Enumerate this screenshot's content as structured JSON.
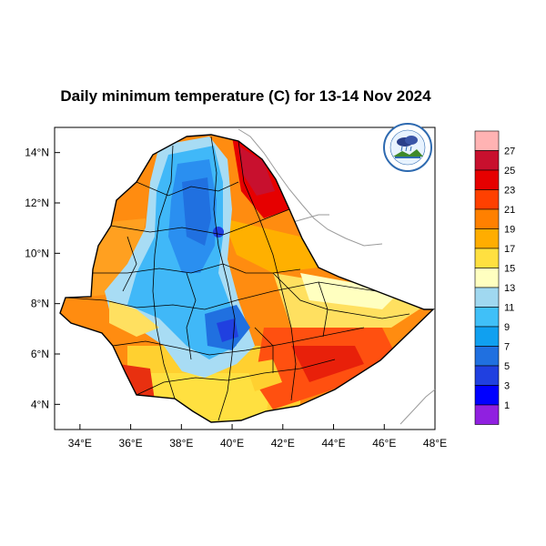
{
  "title": "Daily minimum temperature (C) for 13-14 Nov 2024",
  "logo": {
    "icon": "meteorology-institute-logo-icon",
    "arc_text": "የኢትዮጵያ ሚቲዎሮሎጂ ኢንስቲትዩት",
    "caption": "Ethiopian Meteorology Institute"
  },
  "map": {
    "lon_range": [
      33,
      48
    ],
    "lat_range": [
      3,
      15
    ],
    "x_ticks": [
      "34°E",
      "36°E",
      "38°E",
      "40°E",
      "42°E",
      "44°E",
      "46°E",
      "48°E"
    ],
    "y_ticks": [
      "14°N",
      "12°N",
      "10°N",
      "8°N",
      "6°N",
      "4°N"
    ]
  },
  "colorbar": {
    "labels": [
      "27",
      "25",
      "23",
      "21",
      "19",
      "17",
      "15",
      "13",
      "11",
      "9",
      "7",
      "5",
      "3",
      "1"
    ],
    "colors": [
      "#ffb3b3",
      "#c8102e",
      "#e60000",
      "#ff4000",
      "#ff8000",
      "#ffad00",
      "#ffe040",
      "#ffffc0",
      "#a0d8f0",
      "#40c0f8",
      "#10a0f0",
      "#2070e0",
      "#2040e0",
      "#0000ff",
      "#9020e0"
    ]
  },
  "chart_data": {
    "type": "heatmap",
    "title": "Daily minimum temperature (C) for 13-14 Nov 2024",
    "x_ticks": [
      "34°E",
      "36°E",
      "38°E",
      "40°E",
      "42°E",
      "44°E",
      "46°E",
      "48°E"
    ],
    "y_ticks": [
      "14°N",
      "12°N",
      "10°N",
      "8°N",
      "6°N",
      "4°N"
    ],
    "xlim": [
      33,
      48
    ],
    "ylim": [
      3,
      15
    ],
    "colorbar_levels": [
      1,
      3,
      5,
      7,
      9,
      11,
      13,
      15,
      17,
      19,
      21,
      23,
      25,
      27
    ]
  }
}
